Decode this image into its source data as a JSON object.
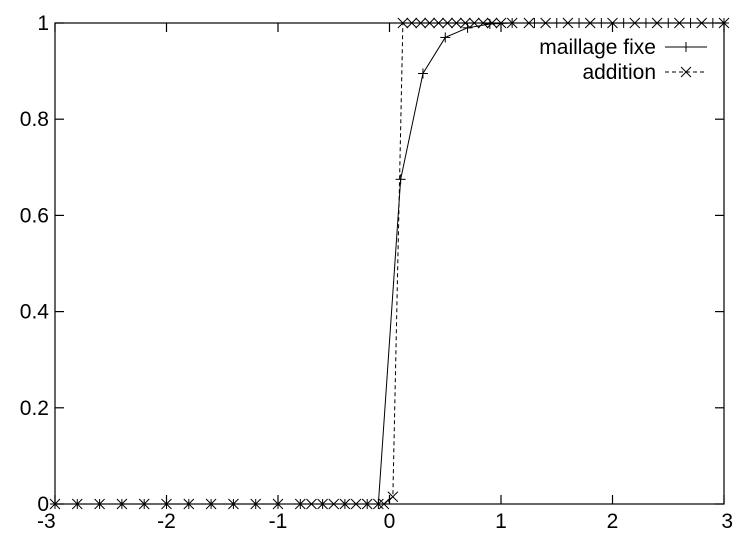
{
  "chart_data": {
    "type": "line",
    "title": "",
    "xlabel": "",
    "ylabel": "",
    "xlim": [
      -3,
      3
    ],
    "ylim": [
      0,
      1
    ],
    "grid": false,
    "legend_position": "top-right",
    "x_ticks": [
      "-3",
      "-2",
      "-1",
      "0",
      "1",
      "2",
      "3"
    ],
    "y_ticks": [
      "0",
      "0.2",
      "0.4",
      "0.6",
      "0.8",
      "1"
    ],
    "x_tick_values": [
      -3,
      -2,
      -1,
      0,
      1,
      2,
      3
    ],
    "y_tick_values": [
      0,
      0.2,
      0.4,
      0.6,
      0.8,
      1
    ],
    "series": [
      {
        "name": "maillage fixe",
        "marker": "plus",
        "line_style": "solid",
        "x": [
          -3,
          -2.8,
          -2.6,
          -2.4,
          -2.2,
          -2.0,
          -1.8,
          -1.6,
          -1.4,
          -1.2,
          -1.0,
          -0.8,
          -0.6,
          -0.4,
          -0.2,
          -0.1,
          0.1,
          0.3,
          0.5,
          0.7,
          0.9,
          1.1,
          1.3,
          1.5,
          1.7,
          1.9,
          2.1,
          2.3,
          2.5,
          2.7,
          2.9,
          3.0
        ],
        "y": [
          0,
          0,
          0,
          0,
          0,
          0,
          0,
          0,
          0,
          0,
          0,
          0,
          0,
          0,
          0,
          0,
          0.675,
          0.895,
          0.97,
          0.99,
          0.998,
          1,
          1,
          1,
          1,
          1,
          1,
          1,
          1,
          1,
          1,
          1
        ]
      },
      {
        "name": "addition",
        "marker": "cross",
        "line_style": "dashed",
        "x": [
          -3,
          -2.8,
          -2.6,
          -2.4,
          -2.2,
          -2.0,
          -1.8,
          -1.6,
          -1.4,
          -1.2,
          -1.0,
          -0.8,
          -0.7,
          -0.6,
          -0.5,
          -0.4,
          -0.3,
          -0.2,
          -0.1,
          -0.05,
          0.03,
          0.12,
          0.2,
          0.28,
          0.36,
          0.44,
          0.52,
          0.6,
          0.68,
          0.76,
          0.84,
          0.92,
          1.0,
          1.1,
          1.25,
          1.4,
          1.6,
          1.8,
          2.0,
          2.2,
          2.4,
          2.6,
          2.8,
          3.0
        ],
        "y": [
          0,
          0,
          0,
          0,
          0,
          0,
          0,
          0,
          0,
          0,
          0,
          0,
          0,
          0,
          0,
          0,
          0,
          0,
          0,
          0,
          0.015,
          1,
          1,
          1,
          1,
          1,
          1,
          1,
          1,
          1,
          1,
          1,
          1,
          1,
          1,
          1,
          1,
          1,
          1,
          1,
          1,
          1,
          1,
          1
        ]
      }
    ]
  }
}
